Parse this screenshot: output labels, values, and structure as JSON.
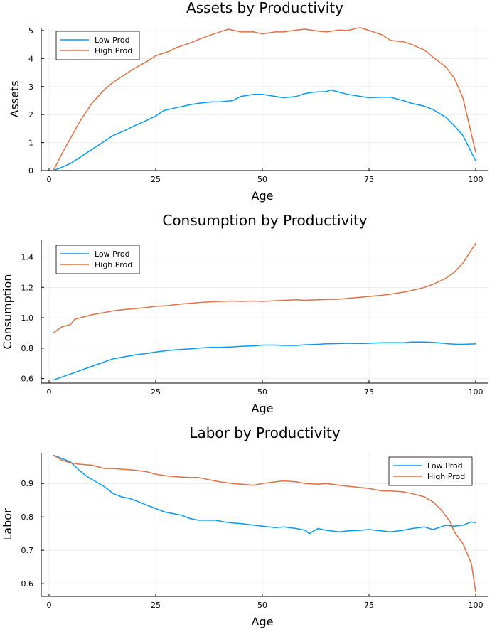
{
  "colors": {
    "low": "#009AFA",
    "high": "#E26F46"
  },
  "chart_data": [
    {
      "type": "line",
      "title": "Assets by Productivity",
      "xlabel": "Age",
      "ylabel": "Assets",
      "xlim": [
        1,
        100
      ],
      "ylim": [
        0,
        5.1
      ],
      "xticks": [
        0,
        25,
        50,
        75,
        100
      ],
      "yticks": [
        0,
        1,
        2,
        3,
        4,
        5
      ],
      "xtick_labels": [
        "0",
        "25",
        "50",
        "75",
        "100"
      ],
      "ytick_labels": [
        "0",
        "1",
        "2",
        "3",
        "4",
        "5"
      ],
      "legend_position": "top-left",
      "grid": true,
      "series": [
        {
          "name": "Low Prod",
          "color": "#009AFA",
          "x": [
            1,
            3,
            5,
            7,
            10,
            13,
            15,
            18,
            20,
            23,
            25,
            27,
            30,
            33,
            35,
            38,
            40,
            43,
            45,
            48,
            50,
            53,
            55,
            58,
            60,
            62,
            65,
            66,
            68,
            70,
            73,
            75,
            78,
            80,
            83,
            85,
            88,
            90,
            93,
            95,
            97,
            100
          ],
          "values": [
            0.0,
            0.12,
            0.25,
            0.45,
            0.75,
            1.05,
            1.25,
            1.45,
            1.6,
            1.8,
            1.95,
            2.15,
            2.25,
            2.35,
            2.4,
            2.45,
            2.45,
            2.5,
            2.65,
            2.72,
            2.72,
            2.65,
            2.6,
            2.65,
            2.75,
            2.8,
            2.82,
            2.88,
            2.8,
            2.72,
            2.65,
            2.6,
            2.62,
            2.62,
            2.5,
            2.4,
            2.3,
            2.18,
            1.9,
            1.6,
            1.25,
            0.35
          ]
        },
        {
          "name": "High Prod",
          "color": "#E26F46",
          "x": [
            1,
            3,
            5,
            7,
            10,
            13,
            15,
            18,
            20,
            23,
            25,
            28,
            30,
            33,
            35,
            38,
            40,
            42,
            45,
            48,
            50,
            53,
            55,
            58,
            60,
            63,
            65,
            68,
            70,
            72,
            73,
            75,
            78,
            80,
            83,
            85,
            88,
            90,
            93,
            95,
            97,
            100
          ],
          "values": [
            0.0,
            0.6,
            1.15,
            1.7,
            2.4,
            2.9,
            3.15,
            3.45,
            3.65,
            3.9,
            4.1,
            4.25,
            4.4,
            4.55,
            4.68,
            4.85,
            4.95,
            5.05,
            4.95,
            4.95,
            4.88,
            4.95,
            4.95,
            5.02,
            5.05,
            4.98,
            4.95,
            5.02,
            5.0,
            5.08,
            5.1,
            5.0,
            4.85,
            4.65,
            4.6,
            4.5,
            4.3,
            4.05,
            3.7,
            3.3,
            2.6,
            0.65
          ]
        }
      ]
    },
    {
      "type": "line",
      "title": "Consumption by Productivity",
      "xlabel": "Age",
      "ylabel": "Consumption",
      "xlim": [
        1,
        100
      ],
      "ylim": [
        0.57,
        1.51
      ],
      "xticks": [
        0,
        25,
        50,
        75,
        100
      ],
      "yticks": [
        0.6,
        0.8,
        1.0,
        1.2,
        1.4
      ],
      "xtick_labels": [
        "0",
        "25",
        "50",
        "75",
        "100"
      ],
      "ytick_labels": [
        "0.6",
        "0.8",
        "1.0",
        "1.2",
        "1.4"
      ],
      "legend_position": "top-left",
      "grid": true,
      "series": [
        {
          "name": "Low Prod",
          "color": "#009AFA",
          "x": [
            1,
            3,
            5,
            7,
            10,
            13,
            15,
            18,
            20,
            23,
            25,
            28,
            30,
            33,
            35,
            38,
            40,
            43,
            45,
            48,
            50,
            53,
            55,
            58,
            60,
            63,
            65,
            68,
            70,
            73,
            75,
            78,
            80,
            83,
            85,
            88,
            90,
            93,
            95,
            97,
            100
          ],
          "values": [
            0.59,
            0.61,
            0.63,
            0.65,
            0.68,
            0.71,
            0.73,
            0.745,
            0.755,
            0.765,
            0.775,
            0.785,
            0.79,
            0.795,
            0.8,
            0.805,
            0.805,
            0.808,
            0.812,
            0.815,
            0.82,
            0.82,
            0.818,
            0.818,
            0.822,
            0.825,
            0.828,
            0.83,
            0.832,
            0.83,
            0.832,
            0.835,
            0.835,
            0.835,
            0.84,
            0.84,
            0.838,
            0.83,
            0.826,
            0.825,
            0.828
          ]
        },
        {
          "name": "High Prod",
          "color": "#E26F46",
          "x": [
            1,
            3,
            5,
            6,
            8,
            10,
            13,
            15,
            18,
            20,
            23,
            25,
            28,
            30,
            33,
            35,
            38,
            40,
            43,
            45,
            48,
            50,
            53,
            55,
            58,
            60,
            63,
            65,
            68,
            70,
            73,
            75,
            78,
            80,
            83,
            85,
            88,
            90,
            93,
            95,
            97,
            100
          ],
          "values": [
            0.9,
            0.94,
            0.955,
            0.99,
            1.005,
            1.02,
            1.035,
            1.045,
            1.055,
            1.06,
            1.068,
            1.075,
            1.08,
            1.088,
            1.095,
            1.1,
            1.105,
            1.108,
            1.11,
            1.108,
            1.11,
            1.108,
            1.112,
            1.115,
            1.118,
            1.115,
            1.118,
            1.12,
            1.122,
            1.128,
            1.135,
            1.14,
            1.148,
            1.155,
            1.168,
            1.18,
            1.2,
            1.22,
            1.26,
            1.3,
            1.36,
            1.49
          ]
        }
      ]
    },
    {
      "type": "line",
      "title": "Labor by Productivity",
      "xlabel": "Age",
      "ylabel": "Labor",
      "xlim": [
        1,
        100
      ],
      "ylim": [
        0.562,
        0.992
      ],
      "xticks": [
        0,
        25,
        50,
        75,
        100
      ],
      "yticks": [
        0.6,
        0.7,
        0.8,
        0.9
      ],
      "xtick_labels": [
        "0",
        "25",
        "50",
        "75",
        "100"
      ],
      "ytick_labels": [
        "0.6",
        "0.7",
        "0.8",
        "0.9"
      ],
      "legend_position": "top-right",
      "grid": true,
      "series": [
        {
          "name": "Low Prod",
          "color": "#009AFA",
          "x": [
            1,
            3,
            5,
            7,
            9,
            11,
            13,
            15,
            17,
            19,
            21,
            23,
            25,
            27,
            29,
            31,
            33,
            35,
            37,
            39,
            41,
            43,
            45,
            48,
            50,
            53,
            55,
            58,
            60,
            61,
            63,
            65,
            68,
            70,
            73,
            75,
            78,
            80,
            83,
            85,
            88,
            90,
            93,
            95,
            97,
            99,
            100
          ],
          "values": [
            0.985,
            0.975,
            0.965,
            0.94,
            0.92,
            0.905,
            0.89,
            0.87,
            0.86,
            0.855,
            0.845,
            0.835,
            0.825,
            0.815,
            0.81,
            0.805,
            0.795,
            0.79,
            0.79,
            0.79,
            0.785,
            0.782,
            0.78,
            0.775,
            0.772,
            0.768,
            0.77,
            0.765,
            0.76,
            0.75,
            0.765,
            0.76,
            0.755,
            0.758,
            0.76,
            0.762,
            0.758,
            0.755,
            0.76,
            0.765,
            0.77,
            0.762,
            0.775,
            0.772,
            0.775,
            0.785,
            0.782
          ]
        },
        {
          "name": "High Prod",
          "color": "#E26F46",
          "x": [
            1,
            3,
            5,
            7,
            10,
            13,
            15,
            18,
            20,
            23,
            25,
            28,
            30,
            33,
            35,
            38,
            40,
            43,
            45,
            48,
            50,
            53,
            55,
            58,
            60,
            63,
            65,
            68,
            70,
            73,
            75,
            78,
            80,
            83,
            85,
            88,
            90,
            92,
            94,
            95,
            97,
            99,
            100
          ],
          "values": [
            0.985,
            0.97,
            0.962,
            0.958,
            0.955,
            0.945,
            0.945,
            0.942,
            0.94,
            0.935,
            0.928,
            0.922,
            0.92,
            0.918,
            0.918,
            0.91,
            0.905,
            0.9,
            0.898,
            0.895,
            0.9,
            0.905,
            0.908,
            0.905,
            0.9,
            0.898,
            0.9,
            0.895,
            0.892,
            0.888,
            0.885,
            0.878,
            0.878,
            0.875,
            0.87,
            0.86,
            0.845,
            0.82,
            0.785,
            0.755,
            0.72,
            0.66,
            0.575
          ]
        }
      ]
    }
  ]
}
